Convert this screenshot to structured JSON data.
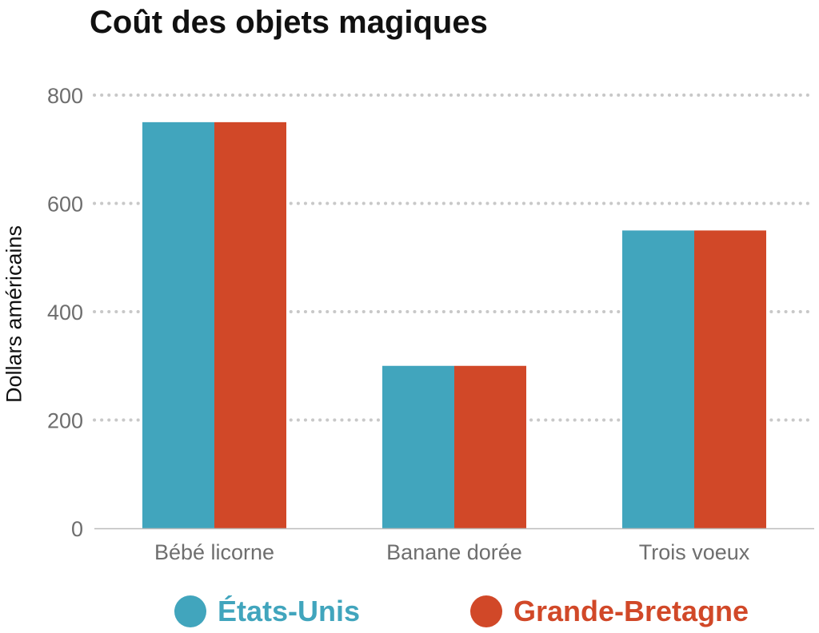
{
  "chart_data": {
    "type": "bar",
    "title": "Coût des objets magiques",
    "xlabel": "",
    "ylabel": "Dollars américains",
    "categories": [
      "Bébé licorne",
      "Banane dorée",
      "Trois voeux"
    ],
    "series": [
      {
        "name": "États-Unis",
        "values": [
          750,
          300,
          550
        ],
        "color": "#41a5bd"
      },
      {
        "name": "Grande-Bretagne",
        "values": [
          750,
          300,
          550
        ],
        "color": "#d14828"
      }
    ],
    "ylim": [
      0,
      800
    ],
    "yticks": [
      0,
      200,
      400,
      600,
      800
    ],
    "ytick_labels": [
      "0",
      "200",
      "400",
      "600",
      "800"
    ],
    "grid": "horizontal dotted",
    "legend_position": "bottom",
    "colors": {
      "grid": "#c8c8c8",
      "axis": "#bbbbbb",
      "tick_text": "#6e6e6e",
      "title": "#111111"
    }
  }
}
